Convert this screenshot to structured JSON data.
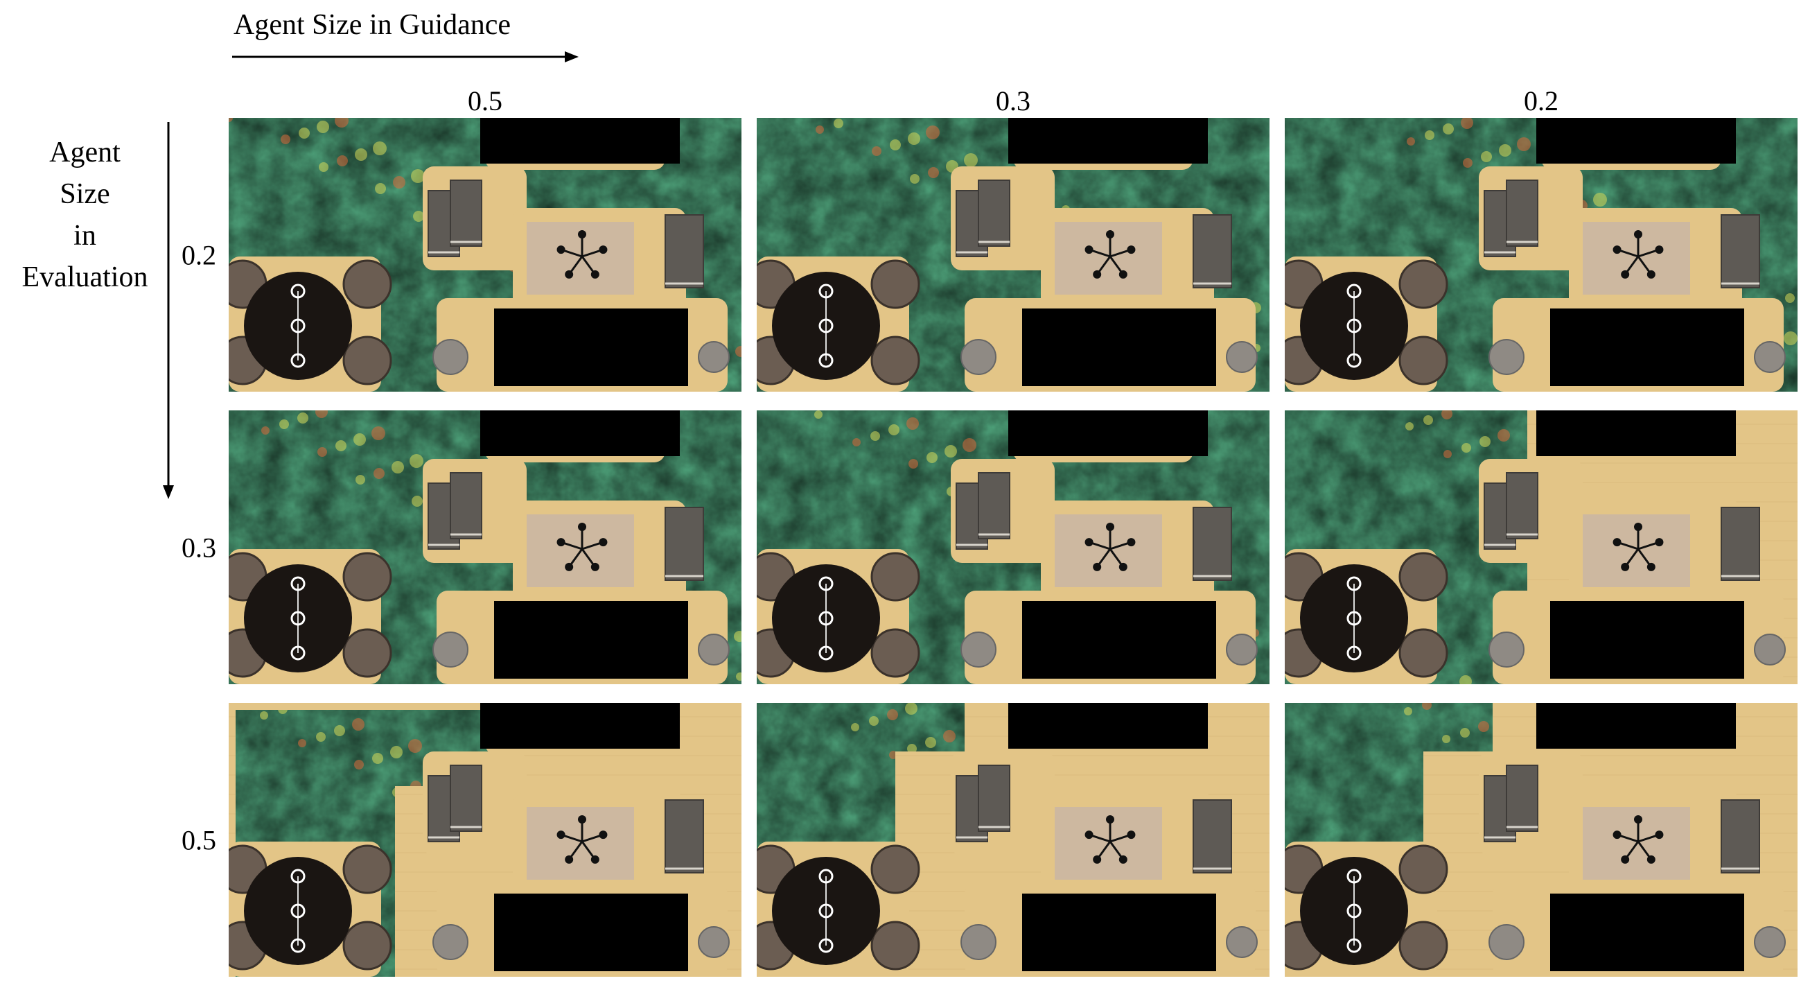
{
  "guidance_axis": {
    "title": "Agent Size in Guidance"
  },
  "evaluation_axis": {
    "title_lines": [
      "Agent",
      "Size",
      "in",
      "Evaluation"
    ]
  },
  "columns": [
    {
      "label": "0.5"
    },
    {
      "label": "0.3"
    },
    {
      "label": "0.2"
    }
  ],
  "rows": [
    {
      "label": "0.2"
    },
    {
      "label": "0.3"
    },
    {
      "label": "0.5"
    }
  ],
  "colors": {
    "floor": "#e3c587",
    "heat_blue": "#4a5fb0",
    "heat_green": "#5cbf90",
    "heat_yellow": "#d6d85a",
    "heat_red": "#d86a3a",
    "furniture_dark": "#1a1512",
    "sofa": "#5e5a55",
    "rug": "#cdb8a0",
    "black_block": "#000000"
  },
  "icons": [
    "arrow-right-icon",
    "arrow-down-icon"
  ]
}
